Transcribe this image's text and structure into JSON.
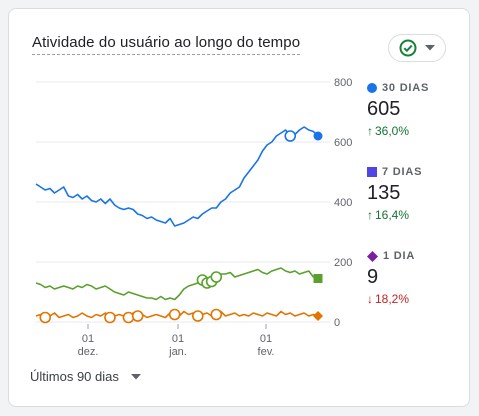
{
  "card": {
    "title": "Atividade do usuário ao longo do tempo",
    "status_icon": "check-circle-icon",
    "dropdown_icon": "caret-down-icon"
  },
  "stats": [
    {
      "label": "30 DIAS",
      "value": "605",
      "change": "36,0%",
      "direction": "up",
      "color": "#1a73e8",
      "marker": "circle"
    },
    {
      "label": "7 DIAS",
      "value": "135",
      "change": "16,4%",
      "direction": "up",
      "color": "#4f46e5",
      "marker": "square"
    },
    {
      "label": "1 DIA",
      "value": "9",
      "change": "18,2%",
      "direction": "down",
      "color": "#7b1fa2",
      "marker": "diamond"
    }
  ],
  "footer": {
    "range_label": "Últimos 90 dias"
  },
  "chart_data": {
    "type": "line",
    "ylim": [
      0,
      800
    ],
    "y_ticks": [
      "800",
      "600",
      "400",
      "200",
      "0"
    ],
    "x_ticks": [
      {
        "day": "01",
        "month": "dez."
      },
      {
        "day": "01",
        "month": "jan."
      },
      {
        "day": "01",
        "month": "fev."
      }
    ],
    "series": [
      {
        "color": "#1a73e8",
        "values": [
          460,
          450,
          440,
          445,
          430,
          440,
          450,
          420,
          415,
          425,
          410,
          420,
          405,
          400,
          410,
          395,
          410,
          390,
          380,
          375,
          380,
          375,
          360,
          355,
          345,
          350,
          340,
          335,
          330,
          345,
          320,
          325,
          330,
          340,
          350,
          345,
          360,
          370,
          380,
          380,
          400,
          410,
          430,
          440,
          450,
          480,
          500,
          520,
          540,
          570,
          590,
          600,
          620,
          630,
          640,
          620,
          625,
          640,
          650,
          640,
          635,
          620
        ]
      },
      {
        "color": "#5aa02c",
        "values": [
          130,
          125,
          115,
          120,
          110,
          115,
          120,
          115,
          110,
          120,
          115,
          125,
          120,
          110,
          115,
          120,
          110,
          100,
          95,
          90,
          100,
          95,
          90,
          85,
          80,
          80,
          75,
          85,
          75,
          80,
          75,
          90,
          110,
          120,
          125,
          130,
          140,
          130,
          135,
          150,
          160,
          160,
          165,
          150,
          155,
          160,
          165,
          170,
          175,
          165,
          160,
          170,
          175,
          180,
          170,
          165,
          170,
          160,
          165,
          170,
          150,
          145
        ]
      },
      {
        "color": "#e37400",
        "values": [
          20,
          25,
          15,
          20,
          30,
          15,
          20,
          25,
          15,
          20,
          30,
          20,
          15,
          25,
          20,
          30,
          15,
          20,
          25,
          20,
          15,
          30,
          20,
          25,
          15,
          20,
          25,
          20,
          15,
          30,
          25,
          20,
          35,
          25,
          30,
          20,
          25,
          30,
          20,
          25,
          35,
          20,
          25,
          30,
          20,
          25,
          20,
          30,
          25,
          20,
          30,
          25,
          20,
          35,
          25,
          30,
          20,
          25,
          30,
          20,
          25,
          20
        ]
      }
    ]
  }
}
